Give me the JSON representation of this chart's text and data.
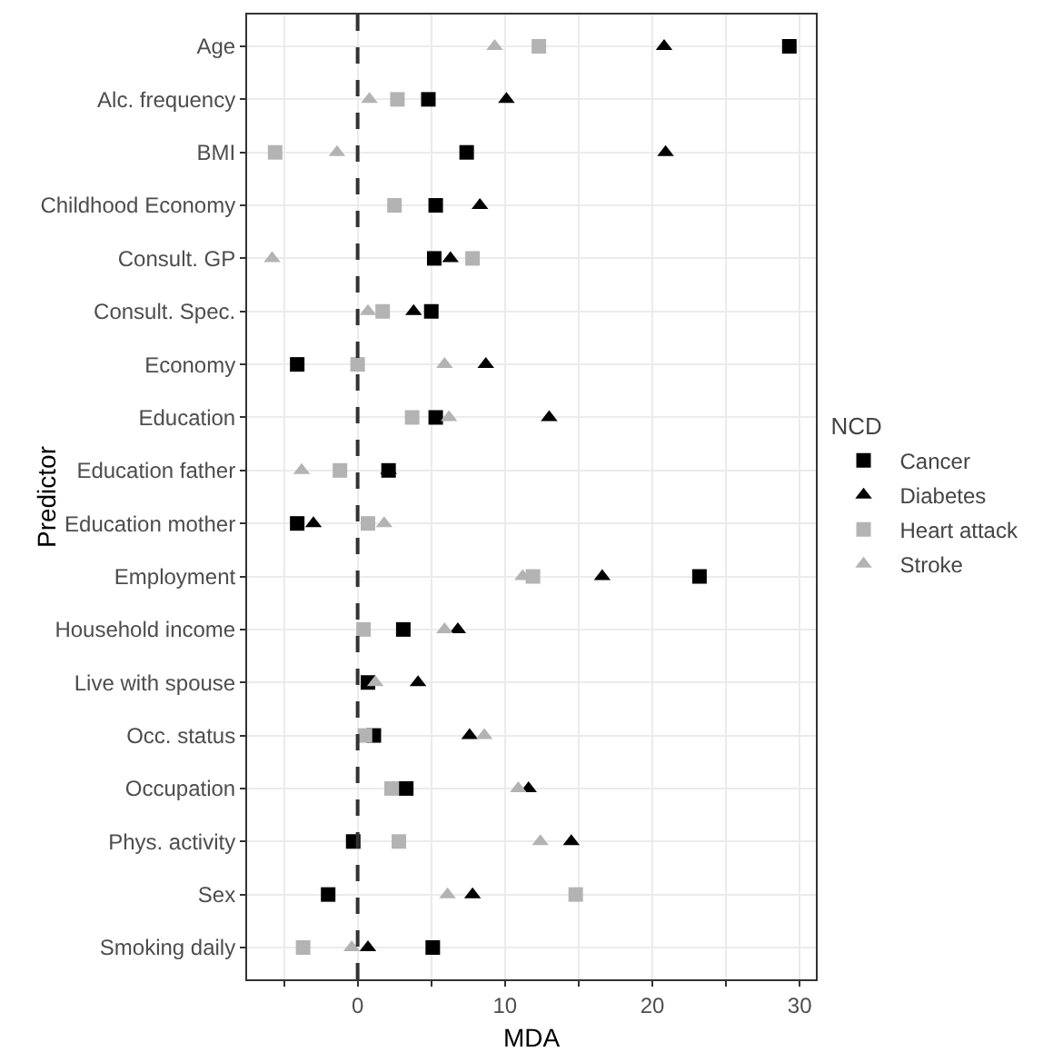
{
  "chart_data": {
    "type": "scatter",
    "orientation": "horizontal",
    "xlabel": "MDA",
    "ylabel": "Predictor",
    "legend_title": "NCD",
    "legend": "right",
    "grid": true,
    "categories": [
      "Age",
      "Alc. frequency",
      "BMI",
      "Childhood Economy",
      "Consult. GP",
      "Consult. Spec.",
      "Economy",
      "Education",
      "Education father",
      "Education mother",
      "Employment",
      "Household income",
      "Live with spouse",
      "Occ. status",
      "Occupation",
      "Phys. activity",
      "Sex",
      "Smoking daily"
    ],
    "xlim": [
      -7.5,
      31.1
    ],
    "xticks": [
      {
        "value": -5,
        "label": null
      },
      0,
      {
        "value": 5,
        "label": null
      },
      10,
      {
        "value": 15,
        "label": null
      },
      20,
      {
        "value": 25,
        "label": null
      },
      30
    ],
    "ref_lines": [
      {
        "axis": "x",
        "value": 0,
        "line_style": "dashed",
        "color": "#333333"
      }
    ],
    "series": [
      {
        "name": "Cancer",
        "color": "#000000",
        "marker": "square",
        "values": [
          29.3,
          4.8,
          7.4,
          5.3,
          5.2,
          5.0,
          -4.1,
          5.3,
          2.1,
          -4.1,
          23.2,
          3.1,
          0.7,
          1.1,
          3.3,
          -0.3,
          -2.0,
          5.1
        ]
      },
      {
        "name": "Diabetes",
        "color": "#000000",
        "marker": "triangle",
        "values": [
          20.8,
          10.1,
          20.9,
          8.3,
          6.3,
          3.8,
          8.7,
          13.0,
          2.1,
          -3.0,
          16.6,
          6.8,
          4.1,
          7.6,
          11.6,
          14.5,
          7.8,
          0.7
        ]
      },
      {
        "name": "Heart attack",
        "color": "#b3b3b3",
        "marker": "square",
        "values": [
          12.3,
          2.7,
          -5.6,
          2.5,
          7.8,
          1.7,
          0.0,
          3.7,
          -1.2,
          0.7,
          11.9,
          0.4,
          null,
          0.5,
          2.3,
          2.8,
          14.8,
          -3.7
        ]
      },
      {
        "name": "Stroke",
        "color": "#b3b3b3",
        "marker": "triangle",
        "values": [
          9.3,
          0.8,
          -1.4,
          null,
          -5.8,
          0.7,
          5.9,
          6.2,
          -3.8,
          1.8,
          11.2,
          5.9,
          1.2,
          8.6,
          10.9,
          12.4,
          6.1,
          -0.4
        ]
      }
    ]
  }
}
